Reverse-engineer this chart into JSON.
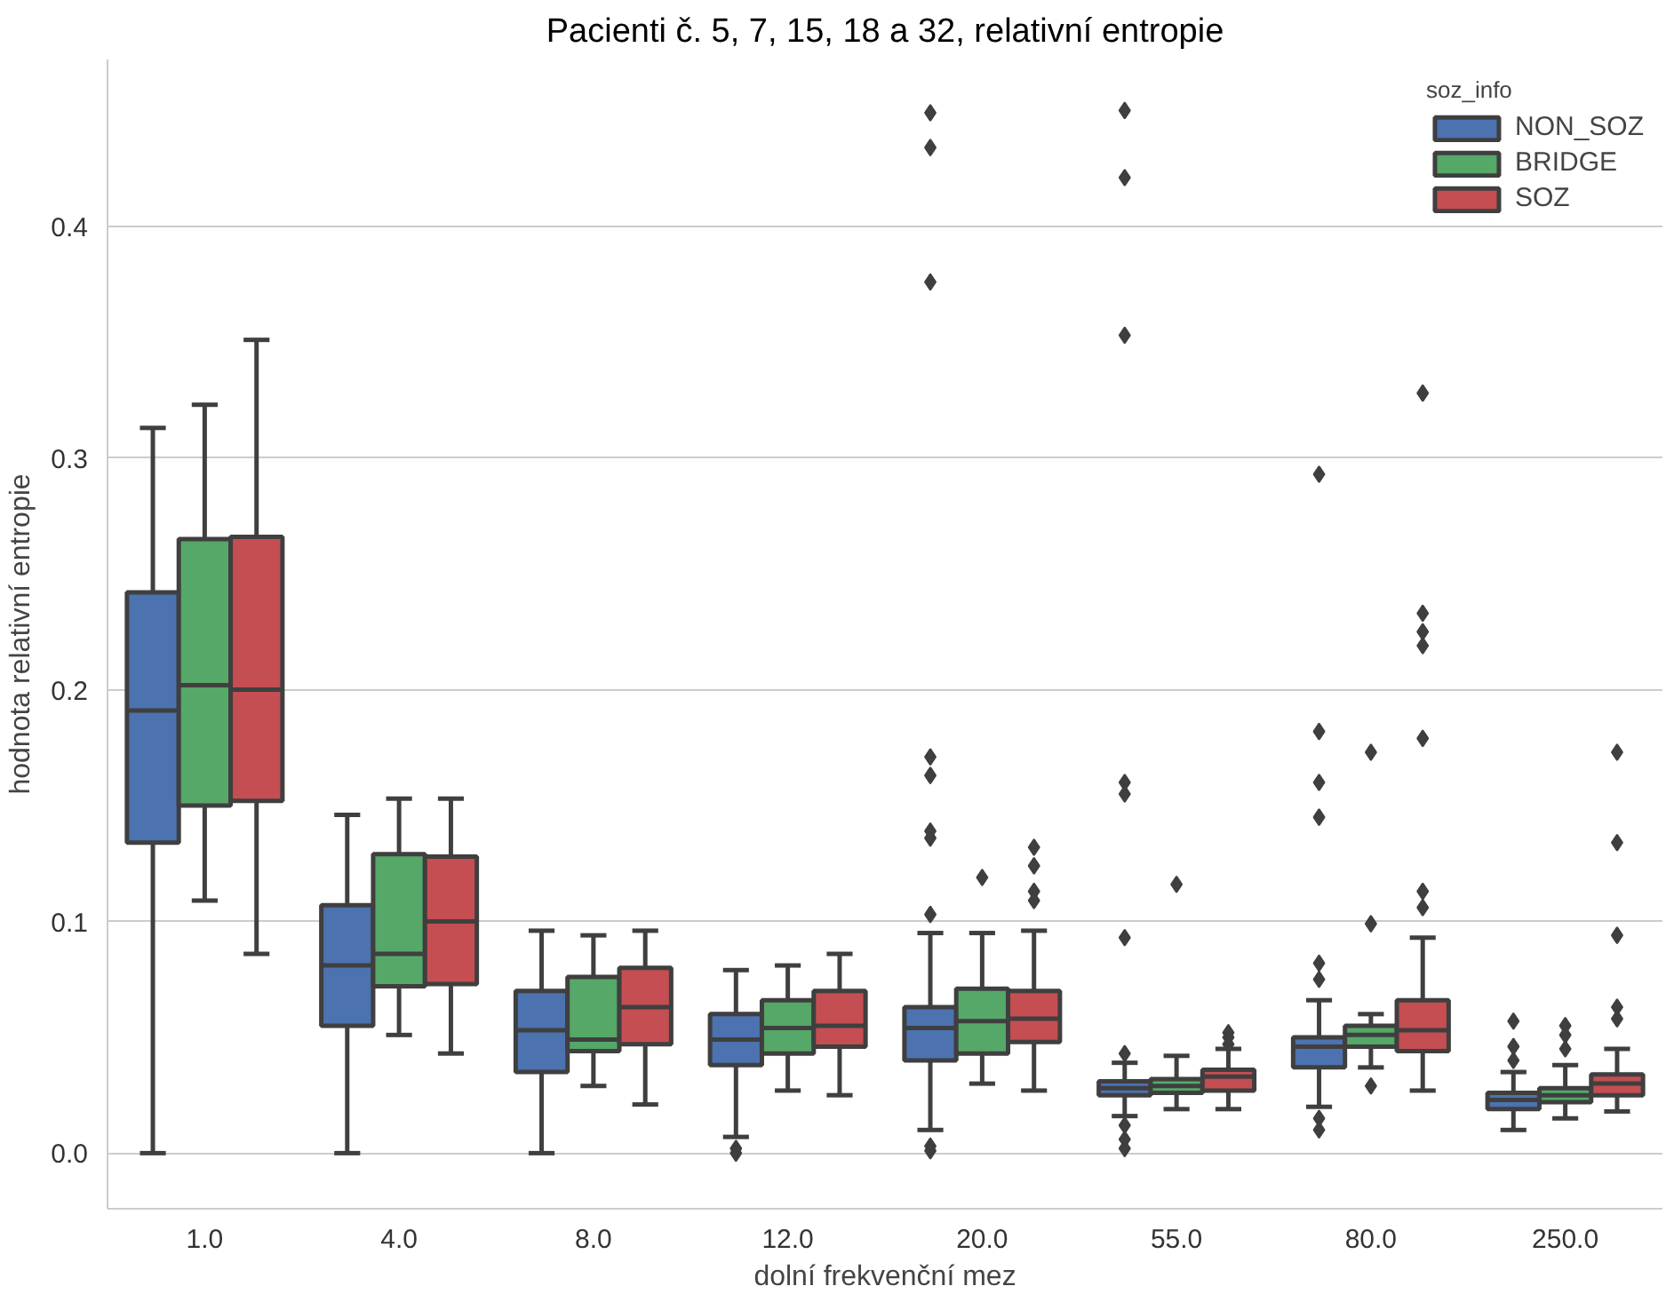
{
  "chart_data": {
    "type": "box",
    "title": "Pacienti č. 5, 7, 15, 18 a 32, relativní entropie",
    "xlabel": "dolní frekvenční mez",
    "ylabel": "hodnota relativní entropie",
    "legend_title": "soz_info",
    "legend": "top right",
    "grid": "y",
    "categories": [
      "1.0",
      "4.0",
      "8.0",
      "12.0",
      "20.0",
      "55.0",
      "80.0",
      "250.0"
    ],
    "ylim": [
      -0.024,
      0.472
    ],
    "yticks": [
      {
        "value": 0,
        "label": "0.0"
      },
      0.1,
      0.2,
      0.3,
      0.4
    ],
    "series": [
      {
        "name": "NON_SOZ",
        "color": "#4c72b0",
        "boxes": [
          {
            "low": 0.0,
            "q1": 0.134,
            "median": 0.191,
            "q3": 0.242,
            "high": 0.313
          },
          {
            "low": 0.0,
            "q1": 0.055,
            "median": 0.081,
            "q3": 0.107,
            "high": 0.146
          },
          {
            "low": 0.0,
            "q1": 0.035,
            "median": 0.053,
            "q3": 0.07,
            "high": 0.096
          },
          {
            "low": 0.007,
            "q1": 0.038,
            "median": 0.049,
            "q3": 0.06,
            "high": 0.079,
            "outliers": [
              0.002,
              0.0
            ]
          },
          {
            "low": 0.01,
            "q1": 0.04,
            "median": 0.054,
            "q3": 0.063,
            "high": 0.095,
            "outliers": [
              0.003,
              0.001,
              0.103,
              0.136,
              0.139,
              0.163,
              0.171,
              0.376,
              0.434,
              0.449
            ]
          },
          {
            "low": 0.016,
            "q1": 0.025,
            "median": 0.028,
            "q3": 0.031,
            "high": 0.039,
            "outliers": [
              0.012,
              0.006,
              0.002,
              0.043,
              0.093,
              0.155,
              0.16,
              0.353,
              0.421,
              0.45
            ]
          },
          {
            "low": 0.02,
            "q1": 0.037,
            "median": 0.046,
            "q3": 0.05,
            "high": 0.066,
            "outliers": [
              0.015,
              0.01,
              0.075,
              0.082,
              0.145,
              0.16,
              0.182,
              0.293
            ]
          },
          {
            "low": 0.01,
            "q1": 0.019,
            "median": 0.023,
            "q3": 0.026,
            "high": 0.035,
            "outliers": [
              0.04,
              0.046,
              0.057
            ]
          }
        ]
      },
      {
        "name": "BRIDGE",
        "color": "#55a868",
        "boxes": [
          {
            "low": 0.109,
            "q1": 0.15,
            "median": 0.202,
            "q3": 0.265,
            "high": 0.323
          },
          {
            "low": 0.051,
            "q1": 0.072,
            "median": 0.086,
            "q3": 0.129,
            "high": 0.153
          },
          {
            "low": 0.029,
            "q1": 0.044,
            "median": 0.049,
            "q3": 0.076,
            "high": 0.094
          },
          {
            "low": 0.027,
            "q1": 0.043,
            "median": 0.054,
            "q3": 0.066,
            "high": 0.081
          },
          {
            "low": 0.03,
            "q1": 0.043,
            "median": 0.057,
            "q3": 0.071,
            "high": 0.095,
            "outliers": [
              0.119
            ]
          },
          {
            "low": 0.019,
            "q1": 0.026,
            "median": 0.029,
            "q3": 0.032,
            "high": 0.042,
            "outliers": [
              0.116
            ]
          },
          {
            "low": 0.037,
            "q1": 0.046,
            "median": 0.051,
            "q3": 0.055,
            "high": 0.06,
            "outliers": [
              0.029,
              0.099,
              0.173
            ]
          },
          {
            "low": 0.015,
            "q1": 0.022,
            "median": 0.025,
            "q3": 0.028,
            "high": 0.038,
            "outliers": [
              0.045,
              0.051,
              0.055
            ]
          }
        ]
      },
      {
        "name": "SOZ",
        "color": "#c44e52",
        "boxes": [
          {
            "low": 0.086,
            "q1": 0.152,
            "median": 0.2,
            "q3": 0.266,
            "high": 0.351
          },
          {
            "low": 0.043,
            "q1": 0.073,
            "median": 0.1,
            "q3": 0.128,
            "high": 0.153
          },
          {
            "low": 0.021,
            "q1": 0.047,
            "median": 0.063,
            "q3": 0.08,
            "high": 0.096
          },
          {
            "low": 0.025,
            "q1": 0.046,
            "median": 0.055,
            "q3": 0.07,
            "high": 0.086
          },
          {
            "low": 0.027,
            "q1": 0.048,
            "median": 0.058,
            "q3": 0.07,
            "high": 0.096,
            "outliers": [
              0.109,
              0.113,
              0.124,
              0.132
            ]
          },
          {
            "low": 0.019,
            "q1": 0.027,
            "median": 0.033,
            "q3": 0.036,
            "high": 0.045,
            "outliers": [
              0.047,
              0.05,
              0.052
            ]
          },
          {
            "low": 0.027,
            "q1": 0.044,
            "median": 0.053,
            "q3": 0.066,
            "high": 0.093,
            "outliers": [
              0.106,
              0.113,
              0.179,
              0.219,
              0.225,
              0.233,
              0.328
            ]
          },
          {
            "low": 0.018,
            "q1": 0.025,
            "median": 0.03,
            "q3": 0.034,
            "high": 0.045,
            "outliers": [
              0.058,
              0.063,
              0.094,
              0.134,
              0.173
            ]
          }
        ]
      }
    ]
  }
}
